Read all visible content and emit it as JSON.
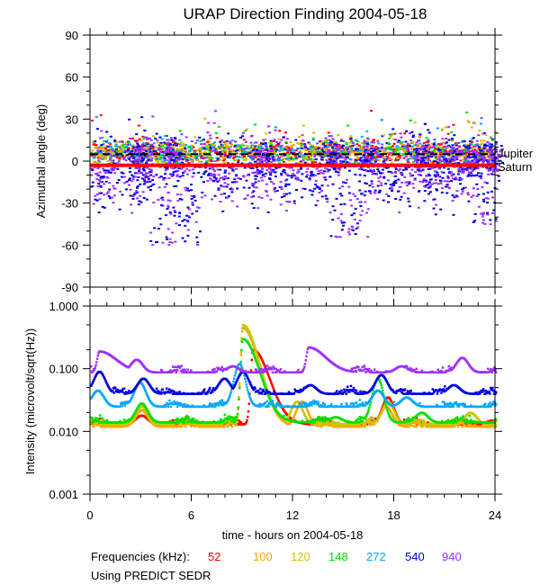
{
  "chart_data": [
    {
      "type": "scatter",
      "title": "URAP Direction Finding  2004-05-18",
      "ylabel": "Azimuthal angle (deg)",
      "xlim": [
        0,
        24
      ],
      "ylim": [
        -90,
        90
      ],
      "yticks": [
        90,
        60,
        30,
        0,
        -30,
        -60,
        -90
      ],
      "yticks_labels": [
        "90",
        "60",
        "30",
        "0",
        "-30",
        "-60",
        "-90"
      ],
      "reference_lines": [
        {
          "name": "Jupiter",
          "y": 5,
          "color": "#000000",
          "style": "dashed"
        },
        {
          "name": "Saturn",
          "y": -3,
          "color": "#ff0000",
          "style": "solid"
        }
      ],
      "series_description": {
        "cluster_center_deg": 7,
        "cluster_spread_deg": 6,
        "low_frequency_dips": [
          {
            "hour_start": 3.5,
            "hour_end": 6.5,
            "min_deg": -60
          },
          {
            "hour_start": 14.0,
            "hour_end": 16.5,
            "min_deg": -55
          },
          {
            "hour_start": 22.5,
            "hour_end": 24.0,
            "min_deg": -45
          }
        ]
      }
    },
    {
      "type": "line",
      "ylabel": "Intensity (microvolt/sqrt(Hz))",
      "xlabel": "time - hours on 2004-05-18",
      "xlim": [
        0,
        24
      ],
      "ylim": [
        0.001,
        1.0
      ],
      "yscale": "log",
      "yticks_labels": [
        "1.000",
        "0.100",
        "0.010",
        "0.001"
      ],
      "xticks": [
        0,
        6,
        12,
        18,
        24
      ],
      "xticks_labels": [
        "0",
        "6",
        "12",
        "18",
        "24"
      ],
      "series": [
        {
          "name": "52",
          "color": "#ff0000",
          "baseline": 0.013,
          "peaks": [
            {
              "hour": 3.0,
              "value": 0.018
            },
            {
              "hour": 9.6,
              "value": 0.2
            },
            {
              "hour": 12.2,
              "value": 0.014
            },
            {
              "hour": 17.6,
              "value": 0.035
            },
            {
              "hour": 23.8,
              "value": 0.015
            }
          ]
        },
        {
          "name": "100",
          "color": "#ffa500",
          "baseline": 0.012,
          "peaks": [
            {
              "hour": 3.0,
              "value": 0.022
            },
            {
              "hour": 9.0,
              "value": 0.45
            },
            {
              "hour": 12.5,
              "value": 0.03
            },
            {
              "hour": 17.5,
              "value": 0.025
            }
          ]
        },
        {
          "name": "120",
          "color": "#c8c800",
          "baseline": 0.013,
          "peaks": [
            {
              "hour": 3.0,
              "value": 0.025
            },
            {
              "hour": 9.0,
              "value": 0.5
            },
            {
              "hour": 12.2,
              "value": 0.03
            },
            {
              "hour": 17.6,
              "value": 0.03
            },
            {
              "hour": 22.5,
              "value": 0.02
            }
          ]
        },
        {
          "name": "148",
          "color": "#00e000",
          "baseline": 0.014,
          "peaks": [
            {
              "hour": 3.0,
              "value": 0.028
            },
            {
              "hour": 9.0,
              "value": 0.3
            },
            {
              "hour": 14.5,
              "value": 0.017
            },
            {
              "hour": 17.0,
              "value": 0.07
            },
            {
              "hour": 19.6,
              "value": 0.02
            }
          ]
        },
        {
          "name": "272",
          "color": "#00a8ff",
          "baseline": 0.025,
          "peaks": [
            {
              "hour": 0.4,
              "value": 0.045
            },
            {
              "hour": 2.9,
              "value": 0.06
            },
            {
              "hour": 8.8,
              "value": 0.12
            },
            {
              "hour": 17.0,
              "value": 0.045
            },
            {
              "hour": 18.7,
              "value": 0.035
            }
          ]
        },
        {
          "name": "540",
          "color": "#0000e0",
          "baseline": 0.04,
          "peaks": [
            {
              "hour": 0.5,
              "value": 0.09
            },
            {
              "hour": 3.1,
              "value": 0.07
            },
            {
              "hour": 7.9,
              "value": 0.07
            },
            {
              "hour": 9.0,
              "value": 0.09
            },
            {
              "hour": 13.0,
              "value": 0.055
            },
            {
              "hour": 17.2,
              "value": 0.08
            },
            {
              "hour": 21.5,
              "value": 0.055
            }
          ]
        },
        {
          "name": "940",
          "color": "#a030ff",
          "baseline": 0.088,
          "peaks": [
            {
              "hour": 0.5,
              "value": 0.19
            },
            {
              "hour": 2.7,
              "value": 0.14
            },
            {
              "hour": 8.4,
              "value": 0.11
            },
            {
              "hour": 12.9,
              "value": 0.22
            },
            {
              "hour": 18.4,
              "value": 0.11
            },
            {
              "hour": 22.0,
              "value": 0.15
            }
          ]
        }
      ]
    }
  ],
  "legend": {
    "label": "Frequencies (kHz):",
    "items": [
      {
        "label": "52",
        "color": "#ff0000"
      },
      {
        "label": "100",
        "color": "#ffa500"
      },
      {
        "label": "120",
        "color": "#c8c800"
      },
      {
        "label": "148",
        "color": "#00e000"
      },
      {
        "label": "272",
        "color": "#00a8ff"
      },
      {
        "label": "540",
        "color": "#0000e0"
      },
      {
        "label": "940",
        "color": "#a030ff"
      }
    ]
  },
  "footnote": "Using PREDICT SEDR",
  "labels": {
    "jupiter": "Jupiter",
    "saturn": "Saturn"
  }
}
